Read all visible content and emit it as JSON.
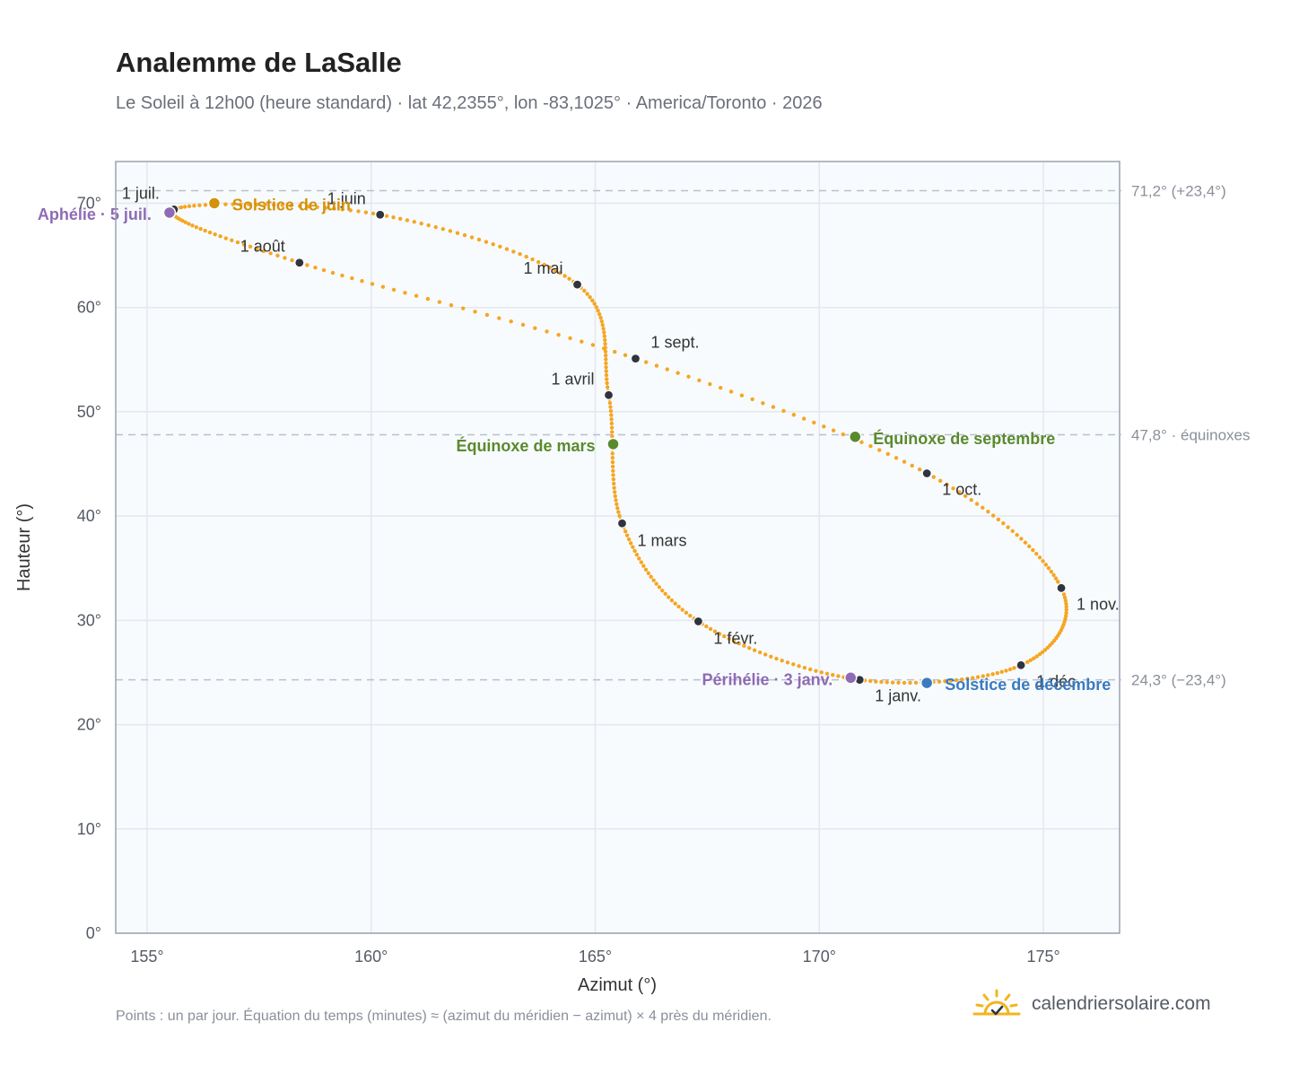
{
  "title": "Analemme de LaSalle",
  "subtitle": "Le Soleil à 12h00 (heure standard) · lat 42,2355°, lon -83,1025° · America/Toronto · 2026",
  "footnote": "Points : un par jour. Équation du temps (minutes) ≈ (azimut du méridien − azimut) × 4 près du méridien.",
  "brand": {
    "name": "calendriersolaire.com",
    "icon": "sun-logo-icon"
  },
  "colors": {
    "curve": "#f5a623",
    "month_marker": "#2f3440",
    "solstice_june": "#d4920a",
    "solstice_december": "#3a7bc0",
    "equinox": "#5a8a2e",
    "apsis": "#8e6bb5",
    "plot_bg": "#f8fbfd",
    "grid": "#e3e8ee",
    "frame": "#9aa3b2",
    "ref_line": "#b9c1cc"
  },
  "chart_data": {
    "type": "scatter",
    "title": "Analemme de LaSalle",
    "xlabel": "Azimut (°)",
    "ylabel": "Hauteur (°)",
    "xlim": [
      154.3,
      176.7
    ],
    "ylim": [
      0,
      74
    ],
    "xticks": [
      155,
      160,
      165,
      170,
      175
    ],
    "yticks": [
      0,
      10,
      20,
      30,
      40,
      50,
      60,
      70
    ],
    "x_tick_labels": [
      "155°",
      "160°",
      "165°",
      "170°",
      "175°"
    ],
    "y_tick_labels": [
      "0°",
      "10°",
      "20°",
      "30°",
      "40°",
      "50°",
      "60°",
      "70°"
    ],
    "grid": true,
    "series_note": "un point par jour",
    "months": [
      {
        "label": "1 janv.",
        "az": 170.9,
        "alt": 24.3,
        "day": 0
      },
      {
        "label": "1 févr.",
        "az": 167.3,
        "alt": 29.9,
        "day": 31
      },
      {
        "label": "1 mars",
        "az": 165.6,
        "alt": 39.3,
        "day": 59
      },
      {
        "label": "1 avril",
        "az": 165.3,
        "alt": 51.6,
        "day": 90
      },
      {
        "label": "1 mai",
        "az": 164.6,
        "alt": 62.2,
        "day": 120
      },
      {
        "label": "1 juin",
        "az": 160.2,
        "alt": 68.9,
        "day": 151
      },
      {
        "label": "1 juil.",
        "az": 155.6,
        "alt": 69.4,
        "day": 181
      },
      {
        "label": "1 août",
        "az": 158.4,
        "alt": 64.3,
        "day": 212
      },
      {
        "label": "1 sept.",
        "az": 165.9,
        "alt": 55.1,
        "day": 243
      },
      {
        "label": "1 oct.",
        "az": 172.4,
        "alt": 44.1,
        "day": 273
      },
      {
        "label": "1 nov.",
        "az": 175.4,
        "alt": 33.1,
        "day": 304
      },
      {
        "label": "1 déc.",
        "az": 174.5,
        "alt": 25.7,
        "day": 334
      }
    ],
    "events": [
      {
        "label": "Solstice de juin",
        "az": 156.5,
        "alt": 70.0,
        "day": 171,
        "kind": "solstice_june"
      },
      {
        "label": "Solstice de décembre",
        "az": 172.4,
        "alt": 24.0,
        "day": 354,
        "kind": "solstice_december"
      },
      {
        "label": "Équinoxe de mars",
        "az": 165.4,
        "alt": 46.9,
        "day": 78,
        "kind": "equinox"
      },
      {
        "label": "Équinoxe de septembre",
        "az": 170.8,
        "alt": 47.6,
        "day": 265,
        "kind": "equinox"
      },
      {
        "label": "Aphélie · 5 juil.",
        "az": 155.5,
        "alt": 69.1,
        "day": 185,
        "kind": "apsis"
      },
      {
        "label": "Périhélie · 3 janv.",
        "az": 170.7,
        "alt": 24.5,
        "day": 2,
        "kind": "apsis"
      }
    ],
    "reference_lines": [
      {
        "alt": 71.2,
        "label": "71,2° (+23,4°)"
      },
      {
        "alt": 47.8,
        "label": "47,8° · équinoxes"
      },
      {
        "alt": 24.3,
        "label": "24,3° (−23,4°)"
      }
    ]
  }
}
